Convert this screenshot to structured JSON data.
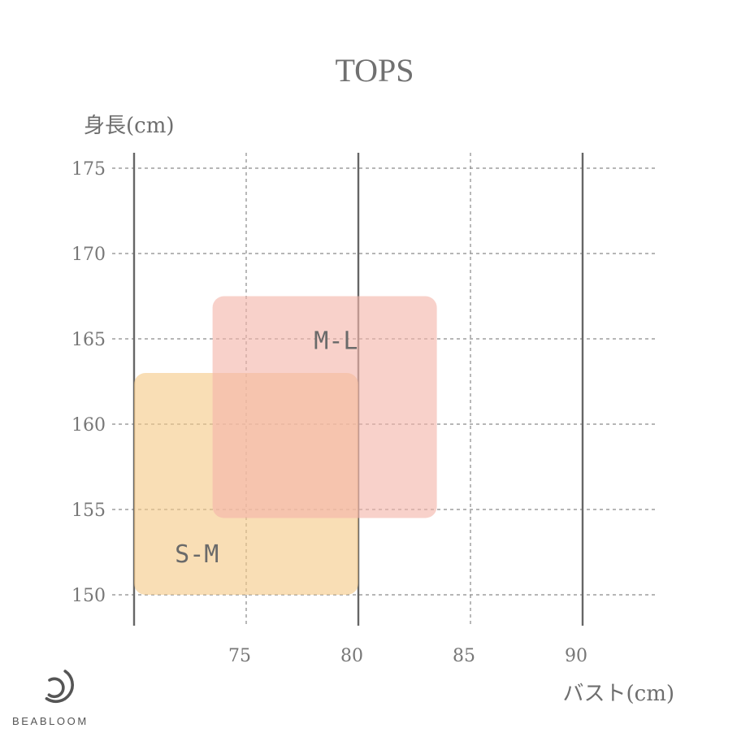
{
  "chart_data": {
    "type": "area",
    "title": "TOPS",
    "xlabel": "バスト(cm)",
    "ylabel": "身長(cm)",
    "x_ticks": [
      75,
      80,
      85,
      90
    ],
    "y_ticks": [
      150,
      155,
      160,
      165,
      170,
      175
    ],
    "xlim": [
      70,
      93
    ],
    "ylim": [
      148.3,
      176
    ],
    "grid": true,
    "regions": [
      {
        "name": "S-M",
        "x_range": [
          70,
          80
        ],
        "y_range": [
          150,
          163
        ],
        "color": "#f5c987"
      },
      {
        "name": "M-L",
        "x_range": [
          73.5,
          83.5
        ],
        "y_range": [
          154.5,
          167.5
        ],
        "color": "#f4b5aa"
      }
    ]
  },
  "brand": {
    "name": "BEABLOOM",
    "logo_icon": "beabloom-logo-icon"
  }
}
